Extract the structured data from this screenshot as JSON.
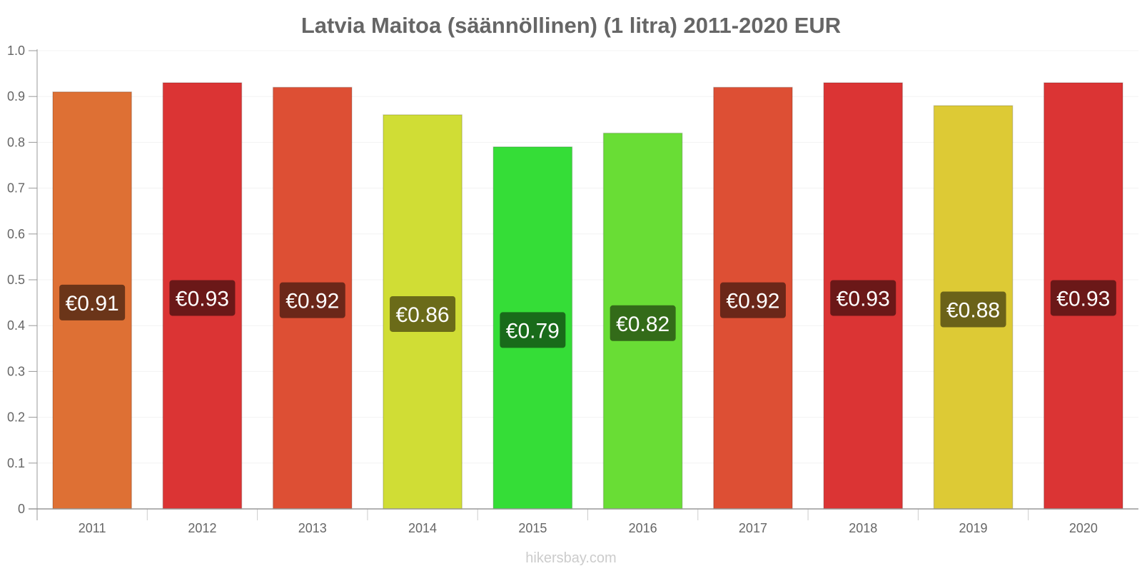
{
  "chart_data": {
    "type": "bar",
    "title": "Latvia Maitoa (säännöllinen) (1 litra) 2011-2020 EUR",
    "categories": [
      "2011",
      "2012",
      "2013",
      "2014",
      "2015",
      "2016",
      "2017",
      "2018",
      "2019",
      "2020"
    ],
    "values": [
      0.91,
      0.93,
      0.92,
      0.86,
      0.79,
      0.82,
      0.92,
      0.93,
      0.88,
      0.93
    ],
    "value_labels": [
      "€0.91",
      "€0.93",
      "€0.92",
      "€0.86",
      "€0.79",
      "€0.82",
      "€0.92",
      "€0.93",
      "€0.88",
      "€0.93"
    ],
    "bar_colors": [
      "#de7034",
      "#db3434",
      "#dd4f34",
      "#d0dd35",
      "#35dd37",
      "#69dd35",
      "#dd4f34",
      "#db3434",
      "#ddca35",
      "#db3434"
    ],
    "label_bg_colors": [
      "#6b3519",
      "#6b1818",
      "#6b2719",
      "#6b6b19",
      "#196b1a",
      "#336b19",
      "#6b2719",
      "#6b1818",
      "#6b6219",
      "#6b1818"
    ],
    "yticks": [
      "0",
      "0.1",
      "0.2",
      "0.3",
      "0.4",
      "0.5",
      "0.6",
      "0.7",
      "0.8",
      "0.9",
      "1.0"
    ],
    "ylim": [
      0,
      1.0
    ],
    "xlabel": "",
    "ylabel": "",
    "grid": true,
    "legend": "none"
  },
  "watermark": "hikersbay.com"
}
